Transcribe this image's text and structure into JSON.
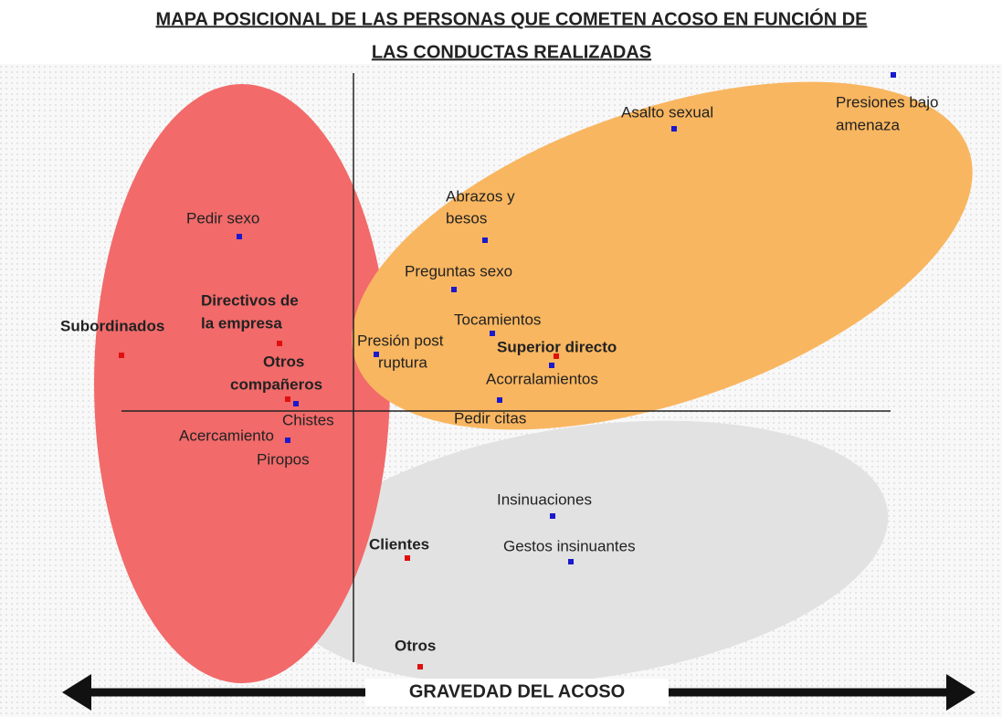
{
  "title": [
    "MAPA POSICIONAL DE LAS PERSONAS QUE COMETEN ACOSO EN FUNCIÓN DE",
    "LAS CONDUCTAS REALIZADAS"
  ],
  "behaviors": [
    {
      "label": [
        "Presiones bajo",
        "amenaza"
      ]
    },
    {
      "label": [
        "Asalto sexual"
      ]
    },
    {
      "label": [
        "Abrazos y",
        "besos"
      ]
    },
    {
      "label": [
        "Pedir sexo"
      ]
    },
    {
      "label": [
        "Preguntas sexo"
      ]
    },
    {
      "label": [
        "Tocamientos"
      ]
    },
    {
      "label": [
        "Presión post",
        "ruptura"
      ]
    },
    {
      "label": [
        "Acorralamientos"
      ]
    },
    {
      "label": [
        "Chistes"
      ]
    },
    {
      "label": [
        "Pedir citas"
      ]
    },
    {
      "label": [
        "Acercamiento"
      ]
    },
    {
      "label": [
        "Piropos"
      ]
    },
    {
      "label": [
        "Insinuaciones"
      ]
    },
    {
      "label": [
        "Gestos insinuantes"
      ]
    }
  ],
  "actors": [
    {
      "label": [
        "Subordinados"
      ]
    },
    {
      "label": [
        "Directivos de",
        "la empresa"
      ]
    },
    {
      "label": [
        "Otros",
        "compañeros"
      ]
    },
    {
      "label": [
        "Superior directo"
      ]
    },
    {
      "label": [
        "Clientes"
      ]
    },
    {
      "label": [
        "Otros"
      ]
    }
  ],
  "axis_label": "GRAVEDAD DEL ACOSO"
}
